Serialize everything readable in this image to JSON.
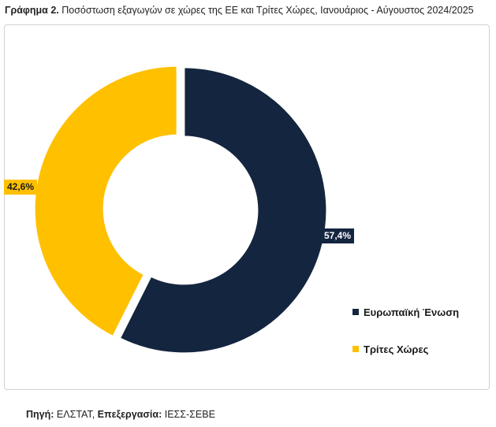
{
  "title": {
    "prefix": "Γράφημα 2.",
    "text": "Ποσόστωση εξαγωγών σε χώρες της ΕΕ και Τρίτες Χώρες, Ιανουάριος - Αύγουστος 2024/2025"
  },
  "chart_data": {
    "type": "pie",
    "variant": "donut",
    "categories": [
      "Ευρωπαϊκή Ένωση",
      "Τρίτες Χώρες"
    ],
    "values": [
      57.4,
      42.6
    ],
    "labels": [
      "57,4%",
      "42,6%"
    ],
    "colors": [
      "#14253f",
      "#ffc000"
    ],
    "title": "",
    "legend_position": "right"
  },
  "source": {
    "label1": "Πηγή:",
    "value1": "ΕΛΣΤΑΤ,",
    "label2": "Επεξεργασία:",
    "value2": "ΙΕΣΣ-ΣΕΒΕ"
  }
}
